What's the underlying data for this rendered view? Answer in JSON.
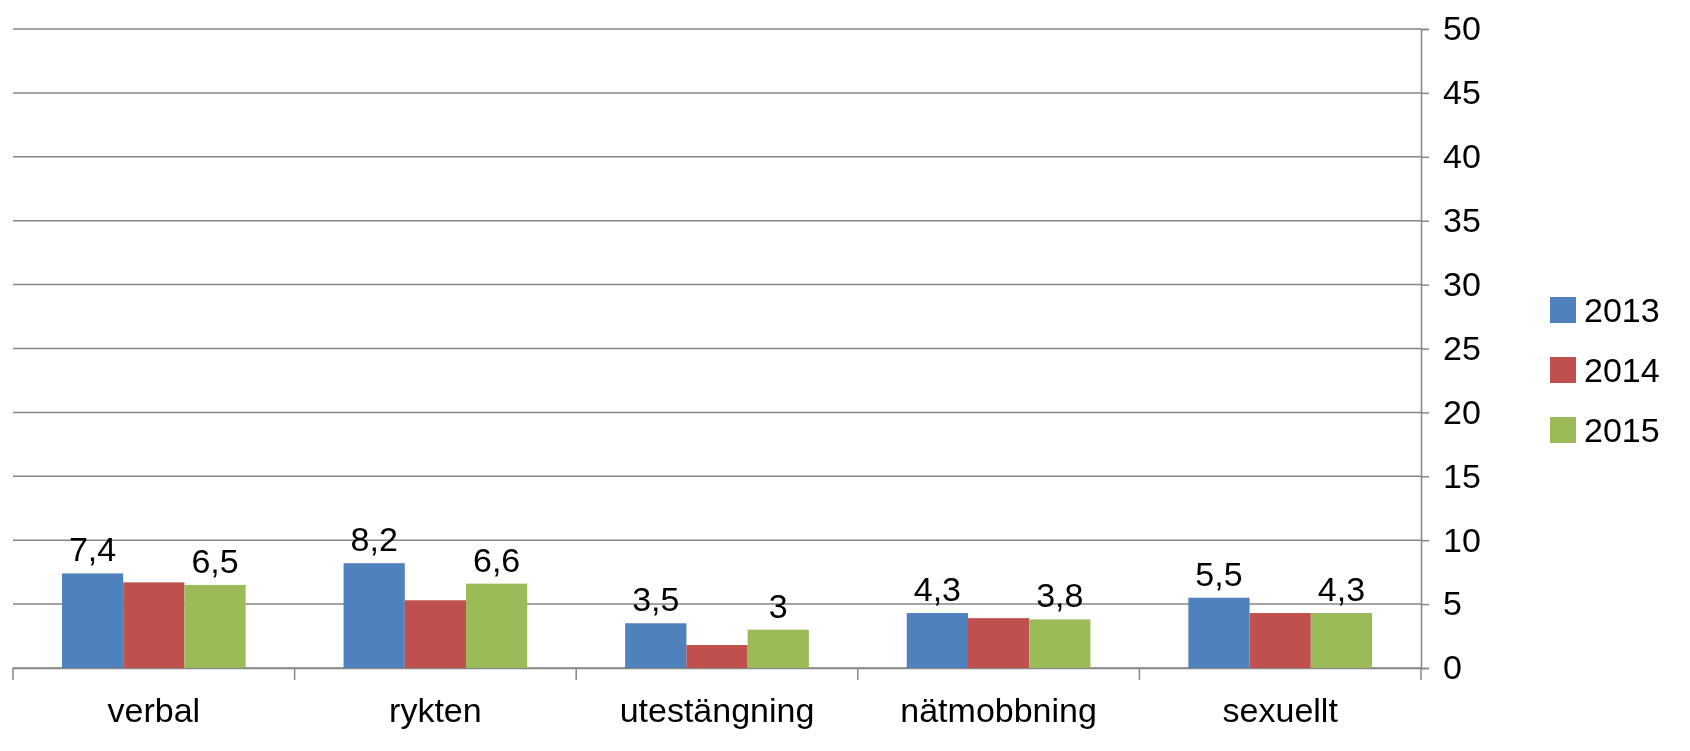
{
  "chart_data": {
    "type": "bar",
    "categories": [
      "verbal",
      "rykten",
      "utestängning",
      "nätmobbning",
      "sexuellt"
    ],
    "series": [
      {
        "name": "2013",
        "color": "#4f81bd",
        "values": [
          7.4,
          8.2,
          3.5,
          4.3,
          5.5
        ],
        "value_labels": [
          "7,4",
          "8,2",
          "3,5",
          "4,3",
          "5,5"
        ]
      },
      {
        "name": "2014",
        "color": "#c0504d",
        "values": [
          6.7,
          5.3,
          1.8,
          3.9,
          4.3
        ]
      },
      {
        "name": "2015",
        "color": "#9bbb59",
        "values": [
          6.5,
          6.6,
          3,
          3.8,
          4.3
        ],
        "value_labels": [
          "6,5",
          "6,6",
          "3",
          "3,8",
          "4,3"
        ]
      }
    ],
    "ylim": [
      0,
      50
    ],
    "yticks": [
      0,
      5,
      10,
      15,
      20,
      25,
      30,
      35,
      40,
      45,
      50
    ],
    "grid": "y",
    "legend": "right"
  }
}
